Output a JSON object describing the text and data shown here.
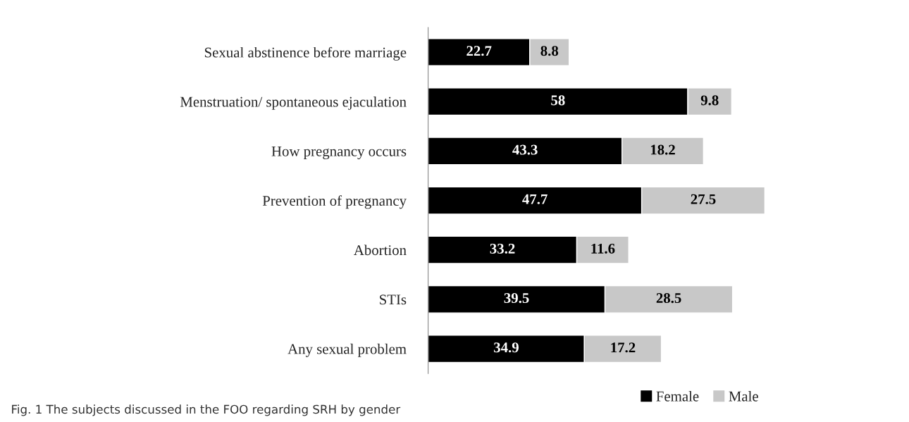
{
  "chart_data": {
    "type": "bar",
    "orientation": "horizontal",
    "stacked": true,
    "data_labels": true,
    "legend": "bottom",
    "grid": false,
    "categories": [
      "Sexual abstinence before marriage",
      "Menstruation/ spontaneous ejaculation",
      "How pregnancy occurs",
      "Prevention of pregnancy",
      "Abortion",
      "STIs",
      "Any sexual problem"
    ],
    "series": [
      {
        "name": "Female",
        "color": "#000000",
        "values": [
          22.7,
          58,
          43.3,
          47.7,
          33.2,
          39.5,
          34.9
        ]
      },
      {
        "name": "Male",
        "color": "#c8c8c8",
        "values": [
          8.8,
          9.8,
          18.2,
          27.5,
          11.6,
          28.5,
          17.2
        ]
      }
    ],
    "annotations": [
      "Fig. 1 The subjects discussed in the FOO regarding SRH by gender"
    ]
  }
}
